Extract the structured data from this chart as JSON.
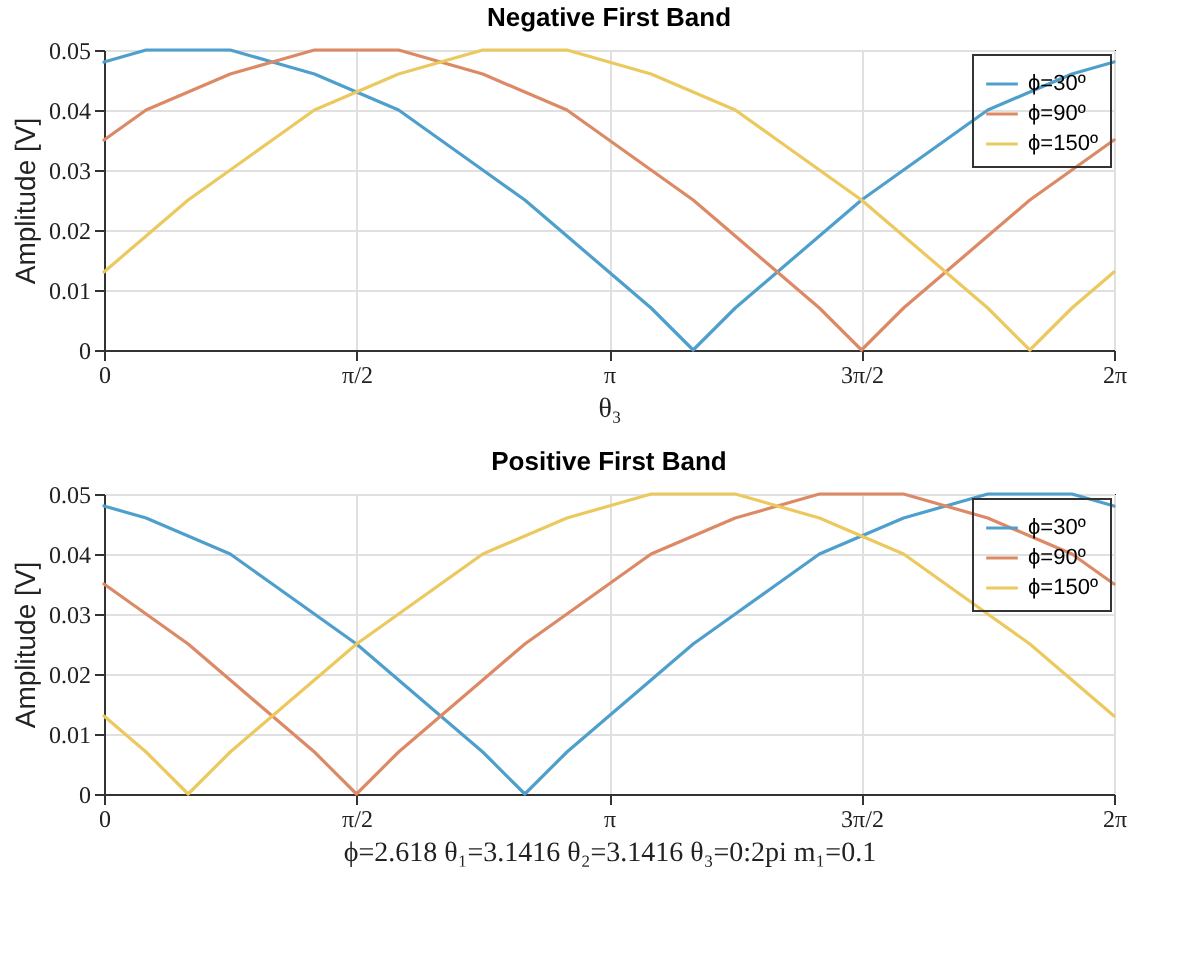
{
  "chart_data": [
    {
      "type": "line",
      "title": "Negative First Band",
      "xlabel": "θ₃",
      "ylabel": "Amplitude [V]",
      "x": [
        0,
        0.2618,
        0.5236,
        0.7854,
        1.0472,
        1.309,
        1.5708,
        1.8326,
        2.0944,
        2.3562,
        2.618,
        2.8798,
        3.1416,
        3.4034,
        3.6652,
        3.927,
        4.1888,
        4.4506,
        4.7124,
        4.9742,
        5.236,
        5.4978,
        5.7596,
        6.0214,
        6.2832
      ],
      "series": [
        {
          "name": "ϕ=30º",
          "color": "#4f9fcc",
          "values": [
            0.048,
            0.05,
            0.05,
            0.05,
            0.048,
            0.046,
            0.043,
            0.04,
            0.035,
            0.03,
            0.025,
            0.019,
            0.013,
            0.007,
            0,
            0.007,
            0.013,
            0.019,
            0.025,
            0.03,
            0.035,
            0.04,
            0.043,
            0.046,
            0.048
          ]
        },
        {
          "name": "ϕ=90º",
          "color": "#dc8a66",
          "values": [
            0.035,
            0.04,
            0.043,
            0.046,
            0.048,
            0.05,
            0.05,
            0.05,
            0.048,
            0.046,
            0.043,
            0.04,
            0.035,
            0.03,
            0.025,
            0.019,
            0.013,
            0.007,
            0,
            0.007,
            0.013,
            0.019,
            0.025,
            0.03,
            0.035
          ]
        },
        {
          "name": "ϕ=150º",
          "color": "#ebc95e",
          "values": [
            0.013,
            0.019,
            0.025,
            0.03,
            0.035,
            0.04,
            0.043,
            0.046,
            0.048,
            0.05,
            0.05,
            0.05,
            0.048,
            0.046,
            0.043,
            0.04,
            0.035,
            0.03,
            0.025,
            0.019,
            0.013,
            0.007,
            0,
            0.007,
            0.013
          ]
        }
      ],
      "xlim": [
        0,
        6.2832
      ],
      "xticks": [
        0,
        {
          "value": 1.5708,
          "label": "π/2"
        },
        {
          "value": 3.1416,
          "label": "π"
        },
        {
          "value": 4.7124,
          "label": "3π/2"
        },
        {
          "value": 6.2832,
          "label": "2π"
        }
      ],
      "ylim": [
        0,
        0.05
      ],
      "yticks": [
        0,
        0.01,
        0.02,
        0.03,
        0.04,
        0.05
      ],
      "grid": true,
      "legend": "top right",
      "line_style": "solid",
      "marker": "none"
    },
    {
      "type": "line",
      "title": "Positive First Band",
      "xlabel": "ϕ=2.618    θ₁=3.1416    θ₂=3.1416    θ₃=0:2pi    m₁=0.1",
      "ylabel": "Amplitude [V]",
      "x": [
        0,
        0.2618,
        0.5236,
        0.7854,
        1.0472,
        1.309,
        1.5708,
        1.8326,
        2.0944,
        2.3562,
        2.618,
        2.8798,
        3.1416,
        3.4034,
        3.6652,
        3.927,
        4.1888,
        4.4506,
        4.7124,
        4.9742,
        5.236,
        5.4978,
        5.7596,
        6.0214,
        6.2832
      ],
      "series": [
        {
          "name": "ϕ=30º",
          "color": "#4f9fcc",
          "values": [
            0.048,
            0.046,
            0.043,
            0.04,
            0.035,
            0.03,
            0.025,
            0.019,
            0.013,
            0.007,
            0,
            0.007,
            0.013,
            0.019,
            0.025,
            0.03,
            0.035,
            0.04,
            0.043,
            0.046,
            0.048,
            0.05,
            0.05,
            0.05,
            0.048
          ]
        },
        {
          "name": "ϕ=90º",
          "color": "#dc8a66",
          "values": [
            0.035,
            0.03,
            0.025,
            0.019,
            0.013,
            0.007,
            0,
            0.007,
            0.013,
            0.019,
            0.025,
            0.03,
            0.035,
            0.04,
            0.043,
            0.046,
            0.048,
            0.05,
            0.05,
            0.05,
            0.048,
            0.046,
            0.043,
            0.04,
            0.035
          ]
        },
        {
          "name": "ϕ=150º",
          "color": "#ebc95e",
          "values": [
            0.013,
            0.007,
            0,
            0.007,
            0.013,
            0.019,
            0.025,
            0.03,
            0.035,
            0.04,
            0.043,
            0.046,
            0.048,
            0.05,
            0.05,
            0.05,
            0.048,
            0.046,
            0.043,
            0.04,
            0.035,
            0.03,
            0.025,
            0.019,
            0.013
          ]
        }
      ],
      "xlim": [
        0,
        6.2832
      ],
      "xticks": [
        0,
        {
          "value": 1.5708,
          "label": "π/2"
        },
        {
          "value": 3.1416,
          "label": "π"
        },
        {
          "value": 4.7124,
          "label": "3π/2"
        },
        {
          "value": 6.2832,
          "label": "2π"
        }
      ],
      "ylim": [
        0,
        0.05
      ],
      "yticks": [
        0,
        0.01,
        0.02,
        0.03,
        0.04,
        0.05
      ],
      "grid": true,
      "legend": "top right",
      "line_style": "solid",
      "marker": "none"
    }
  ]
}
